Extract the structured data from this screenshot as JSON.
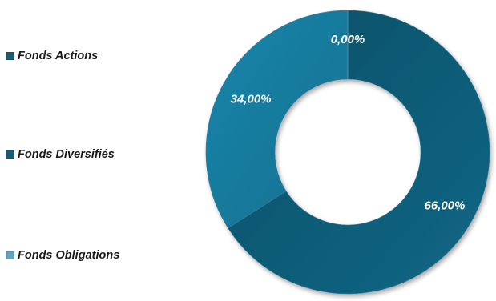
{
  "chart_data": {
    "type": "donut",
    "categories": [
      "Fonds Actions",
      "Fonds Diversifiés",
      "Fonds Obligations"
    ],
    "values": [
      0.0,
      66.0,
      34.0
    ],
    "data_labels": [
      "0,00%",
      "66,00%",
      "34,00%"
    ],
    "unit": "%",
    "legend_position": "left",
    "colors": [
      "#1c5a7a",
      "#0f5b73",
      "#1a82a6"
    ]
  }
}
